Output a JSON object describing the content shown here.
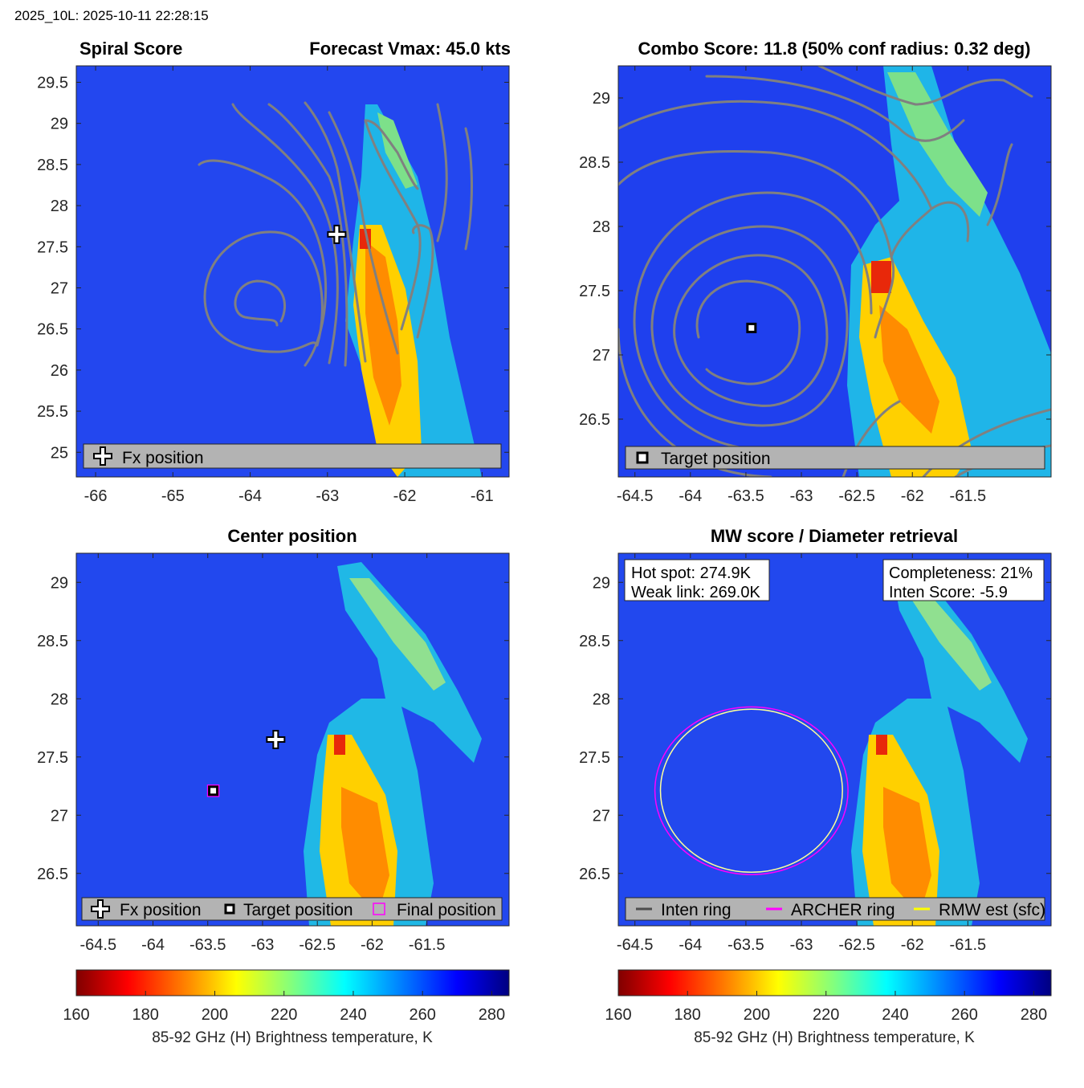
{
  "header": {
    "run_label": "2025_10L: 2025-10-11 22:28:15"
  },
  "colors": {
    "background_field": "#1f3ff0",
    "contour": "#808080",
    "legend_bg": "#b3b3b3",
    "ring_inten": "#4d4d4d",
    "ring_archer": "#ff00ff",
    "ring_rmw": "#ffff00",
    "final_marker": "#ff00ff",
    "colormap": [
      "#800000",
      "#ff0000",
      "#ff8000",
      "#ffff00",
      "#80ff80",
      "#00ffff",
      "#0080ff",
      "#0000ff",
      "#000080"
    ]
  },
  "chart_data": [
    {
      "type": "heatmap",
      "panel": "spiral_score",
      "title_left": "Spiral Score",
      "title_right": "Forecast Vmax: 45.0 kts",
      "xlim": [
        -66.25,
        -60.65
      ],
      "ylim": [
        24.7,
        29.7
      ],
      "x_ticks": [
        -66,
        -65,
        -64,
        -63,
        -62,
        -61
      ],
      "x_tick_labels": [
        "-66",
        "-65",
        "-64",
        "-63",
        "-62",
        "-61"
      ],
      "y_ticks": [
        25,
        25.5,
        26,
        26.5,
        27,
        27.5,
        28,
        28.5,
        29,
        29.5
      ],
      "y_tick_labels": [
        "25",
        "25.5",
        "26",
        "26.5",
        "27",
        "27.5",
        "28",
        "28.5",
        "29",
        "29.5"
      ],
      "fx_position": [
        -62.88,
        27.65
      ],
      "legend": {
        "items": [
          {
            "icon": "plus-icon",
            "label": "Fx position"
          }
        ]
      }
    },
    {
      "type": "heatmap",
      "panel": "combo_score",
      "title": "Combo Score: 11.8  (50% conf radius: 0.32 deg)",
      "xlim": [
        -64.65,
        -60.75
      ],
      "ylim": [
        26.05,
        29.25
      ],
      "x_ticks": [
        -64.5,
        -64,
        -63.5,
        -63,
        -62.5,
        -62,
        -61.5
      ],
      "x_tick_labels": [
        "-64.5",
        "-64",
        "-63.5",
        "-63",
        "-62.5",
        "-62",
        "-61.5"
      ],
      "y_ticks": [
        26.5,
        27,
        27.5,
        28,
        28.5,
        29
      ],
      "y_tick_labels": [
        "26.5",
        "27",
        "27.5",
        "28",
        "28.5",
        "29"
      ],
      "target_position": [
        -63.45,
        27.21
      ],
      "legend": {
        "items": [
          {
            "icon": "square-icon",
            "label": "Target position"
          }
        ]
      }
    },
    {
      "type": "heatmap",
      "panel": "center_position",
      "title": "Center position",
      "xlim": [
        -64.7,
        -60.75
      ],
      "ylim": [
        26.05,
        29.25
      ],
      "x_ticks": [
        -64.5,
        -64,
        -63.5,
        -63,
        -62.5,
        -62,
        -61.5
      ],
      "x_tick_labels": [
        "-64.5",
        "-64",
        "-63.5",
        "-63",
        "-62.5",
        "-62",
        "-61.5"
      ],
      "y_ticks": [
        26.5,
        27,
        27.5,
        28,
        28.5,
        29
      ],
      "y_tick_labels": [
        "26.5",
        "27",
        "27.5",
        "28",
        "28.5",
        "29"
      ],
      "fx_position": [
        -62.88,
        27.65
      ],
      "target_position": [
        -63.45,
        27.21
      ],
      "final_position": [
        -63.45,
        27.21
      ],
      "legend": {
        "items": [
          {
            "icon": "plus-icon",
            "label": "Fx position"
          },
          {
            "icon": "square-icon",
            "label": "Target position"
          },
          {
            "icon": "magenta-square-icon",
            "label": "Final position"
          }
        ]
      }
    },
    {
      "type": "heatmap",
      "panel": "mw_score",
      "title": "MW score / Diameter retrieval",
      "xlim": [
        -64.65,
        -60.75
      ],
      "ylim": [
        26.05,
        29.25
      ],
      "x_ticks": [
        -64.5,
        -64,
        -63.5,
        -63,
        -62.5,
        -62,
        -61.5
      ],
      "x_tick_labels": [
        "-64.5",
        "-64",
        "-63.5",
        "-63",
        "-62.5",
        "-62",
        "-61.5"
      ],
      "y_ticks": [
        26.5,
        27,
        27.5,
        28,
        28.5,
        29
      ],
      "y_tick_labels": [
        "26.5",
        "27",
        "27.5",
        "28",
        "28.5",
        "29"
      ],
      "ring_center": [
        -63.45,
        27.21
      ],
      "archer_ring_radius_deg": [
        0.87,
        0.72
      ],
      "rmw_ring_radius_deg": [
        0.82,
        0.7
      ],
      "info_left": [
        "Hot spot: 274.9K",
        "Weak link: 269.0K"
      ],
      "info_right": [
        "Completeness: 21%",
        "Inten Score: -5.9"
      ],
      "legend": {
        "items": [
          {
            "icon": "gray-line-icon",
            "label": "Inten ring"
          },
          {
            "icon": "magenta-line-icon",
            "label": "ARCHER ring"
          },
          {
            "icon": "yellow-line-icon",
            "label": "RMW est (sfc)"
          }
        ]
      }
    }
  ],
  "colorbars": [
    {
      "ticks": [
        160,
        180,
        200,
        220,
        240,
        260,
        280
      ],
      "tick_labels": [
        "160",
        "180",
        "200",
        "220",
        "240",
        "260",
        "280"
      ],
      "range": [
        160,
        285
      ],
      "label": "85-92 GHz (H) Brightness temperature, K"
    },
    {
      "ticks": [
        160,
        180,
        200,
        220,
        240,
        260,
        280
      ],
      "tick_labels": [
        "160",
        "180",
        "200",
        "220",
        "240",
        "260",
        "280"
      ],
      "range": [
        160,
        285
      ],
      "label": "85-92 GHz (H) Brightness temperature, K"
    }
  ]
}
